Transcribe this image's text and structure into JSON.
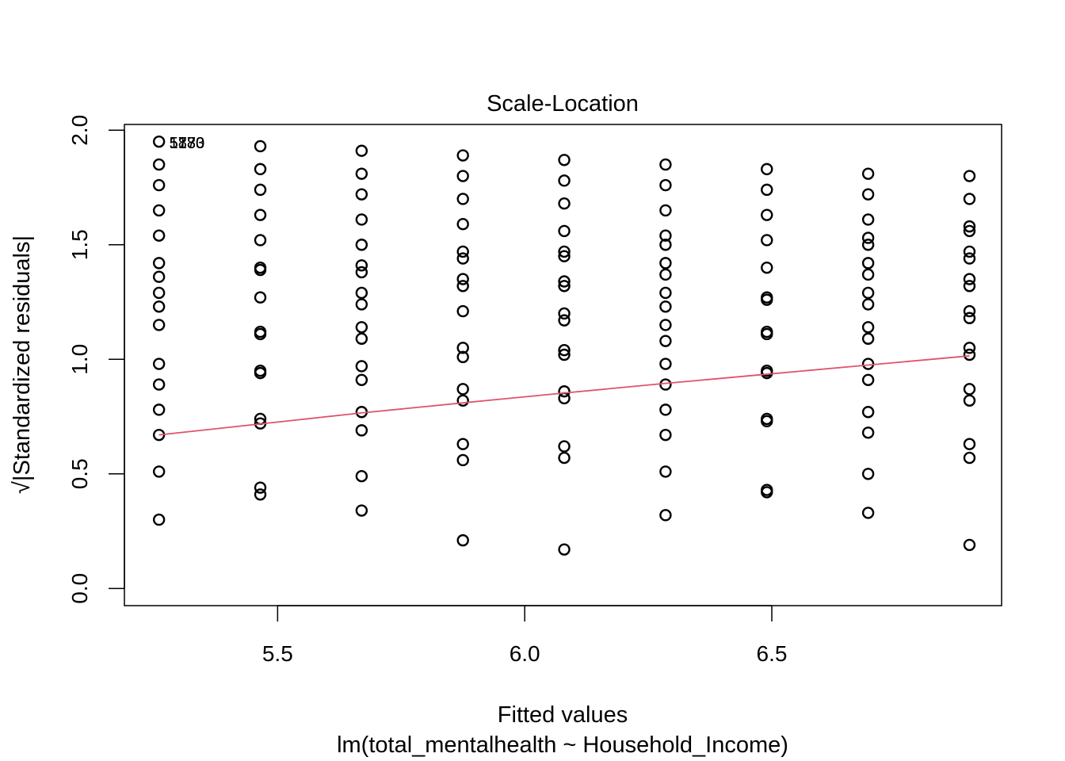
{
  "chart_data": {
    "type": "scatter",
    "title": "Scale-Location",
    "xlabel": "Fitted values",
    "sublabel": "lm(total_mentalhealth ~ Household_Income)",
    "ylabel": "√|Standardized residuals|",
    "xlim": [
      5.19,
      6.965
    ],
    "ylim": [
      -0.075,
      2.025
    ],
    "x_ticks": [
      "5.5",
      "6.0",
      "6.5"
    ],
    "x_tick_values": [
      5.5,
      6.0,
      6.5
    ],
    "y_ticks": [
      "0.0",
      "0.5",
      "1.0",
      "1.5",
      "2.0"
    ],
    "y_tick_values": [
      0.0,
      0.5,
      1.0,
      1.5,
      2.0
    ],
    "grid": false,
    "point_annotations": [
      {
        "x": 5.26,
        "y": 1.945,
        "text": "5170"
      },
      {
        "x": 5.26,
        "y": 1.945,
        "text": "1830"
      },
      {
        "x": 5.26,
        "y": 1.945,
        "text": "5783"
      }
    ],
    "series": [
      {
        "groups": [
          {
            "x": 5.26,
            "y": [
              1.95,
              1.85,
              1.76,
              1.65,
              1.54,
              1.42,
              1.36,
              1.29,
              1.23,
              1.15,
              0.98,
              0.89,
              0.78,
              0.67,
              0.51,
              0.3
            ]
          },
          {
            "x": 5.465,
            "y": [
              1.93,
              1.83,
              1.74,
              1.63,
              1.52,
              1.4,
              1.39,
              1.27,
              1.12,
              1.11,
              0.95,
              0.94,
              0.74,
              0.72,
              0.44,
              0.41
            ]
          },
          {
            "x": 5.67,
            "y": [
              1.91,
              1.81,
              1.72,
              1.61,
              1.5,
              1.41,
              1.38,
              1.29,
              1.24,
              1.14,
              1.09,
              0.97,
              0.91,
              0.77,
              0.69,
              0.49,
              0.34
            ]
          },
          {
            "x": 5.875,
            "y": [
              1.89,
              1.8,
              1.7,
              1.59,
              1.47,
              1.44,
              1.35,
              1.32,
              1.21,
              1.05,
              1.01,
              0.87,
              0.82,
              0.63,
              0.56,
              0.21
            ]
          },
          {
            "x": 6.08,
            "y": [
              1.87,
              1.78,
              1.68,
              1.56,
              1.47,
              1.45,
              1.34,
              1.32,
              1.2,
              1.17,
              1.04,
              1.02,
              0.86,
              0.83,
              0.62,
              0.57,
              0.17
            ]
          },
          {
            "x": 6.285,
            "y": [
              1.85,
              1.76,
              1.65,
              1.54,
              1.5,
              1.42,
              1.37,
              1.29,
              1.23,
              1.15,
              1.08,
              0.98,
              0.89,
              0.78,
              0.67,
              0.51,
              0.32
            ]
          },
          {
            "x": 6.49,
            "y": [
              1.83,
              1.74,
              1.63,
              1.52,
              1.4,
              1.27,
              1.26,
              1.12,
              1.11,
              0.95,
              0.94,
              0.74,
              0.73,
              0.43,
              0.42
            ]
          },
          {
            "x": 6.695,
            "y": [
              1.81,
              1.72,
              1.61,
              1.53,
              1.5,
              1.42,
              1.37,
              1.29,
              1.24,
              1.14,
              1.09,
              0.98,
              0.91,
              0.77,
              0.68,
              0.5,
              0.33
            ]
          },
          {
            "x": 6.9,
            "y": [
              1.8,
              1.7,
              1.58,
              1.56,
              1.47,
              1.44,
              1.35,
              1.32,
              1.21,
              1.18,
              1.05,
              1.02,
              0.87,
              0.82,
              0.63,
              0.57,
              0.19
            ]
          }
        ]
      }
    ],
    "smooth_line": {
      "color": "#DF536B",
      "x": [
        5.26,
        5.465,
        5.67,
        5.875,
        6.08,
        6.285,
        6.49,
        6.695,
        6.9
      ],
      "y": [
        0.67,
        0.718,
        0.766,
        0.81,
        0.853,
        0.895,
        0.935,
        0.975,
        1.015
      ]
    },
    "point_color": "#000000"
  }
}
